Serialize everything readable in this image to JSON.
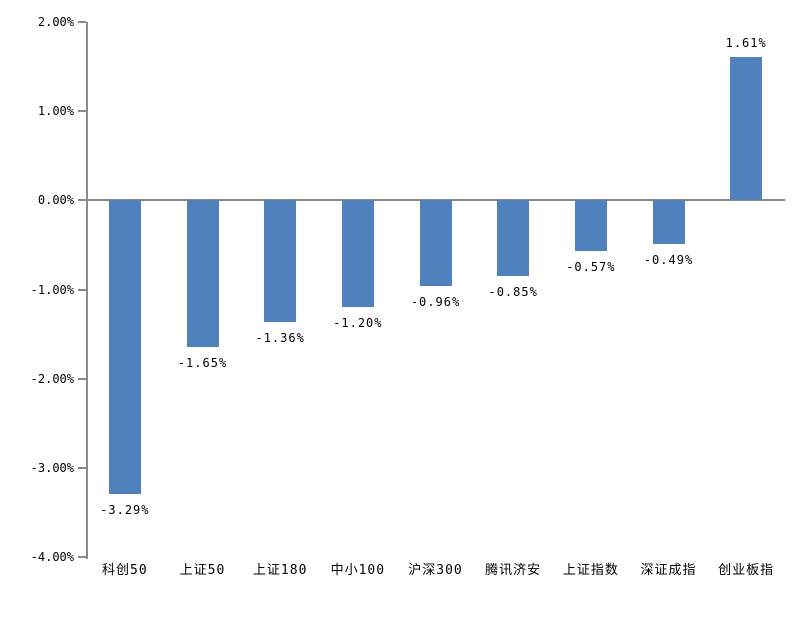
{
  "chart_data": {
    "type": "bar",
    "title": "",
    "xlabel": "",
    "ylabel": "",
    "categories": [
      "科创50",
      "上证50",
      "上证180",
      "中小100",
      "沪深300",
      "腾讯济安",
      "上证指数",
      "深证成指",
      "创业板指"
    ],
    "values": [
      -3.29,
      -1.65,
      -1.36,
      -1.2,
      -0.96,
      -0.85,
      -0.57,
      -0.49,
      1.61
    ],
    "value_labels": [
      "-3.29%",
      "-1.65%",
      "-1.36%",
      "-1.20%",
      "-0.96%",
      "-0.85%",
      "-0.57%",
      "-0.49%",
      "1.61%"
    ],
    "y_ticks": [
      {
        "label": "2.00%",
        "value": 2
      },
      {
        "label": "1.00%",
        "value": 1
      },
      {
        "label": "0.00%",
        "value": 0
      },
      {
        "label": "-1.00%",
        "value": -1
      },
      {
        "label": "-2.00%",
        "value": -2
      },
      {
        "label": "-3.00%",
        "value": -3
      },
      {
        "label": "-4.00%",
        "value": -4
      }
    ],
    "ylim": [
      -4,
      2
    ],
    "grid": false,
    "legend_position": "none",
    "bar_color": "#4F81BD",
    "axis_color": "#898989",
    "text_color": "#000000",
    "background_color": "#FFFFFF"
  }
}
